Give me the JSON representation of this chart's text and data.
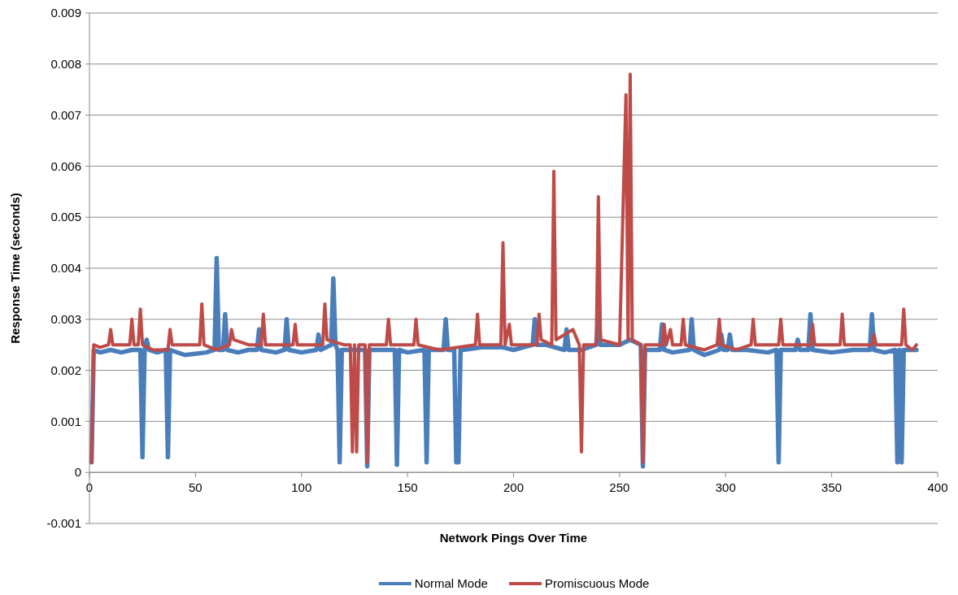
{
  "chart_data": {
    "type": "line",
    "xlabel": "Network Pings Over Time",
    "ylabel": "Response Time (seconds)",
    "xlim": [
      0,
      400
    ],
    "xticks": [
      0,
      50,
      100,
      150,
      200,
      250,
      300,
      350,
      400
    ],
    "ylim": [
      -0.001,
      0.009
    ],
    "yticks": [
      {
        "value": -0.001,
        "label": "-0.001"
      },
      {
        "value": 0,
        "label": "0"
      },
      {
        "value": 0.001,
        "label": "0.001"
      },
      {
        "value": 0.002,
        "label": "0.002"
      },
      {
        "value": 0.003,
        "label": "0.003"
      },
      {
        "value": 0.004,
        "label": "0.004"
      },
      {
        "value": 0.005,
        "label": "0.005"
      },
      {
        "value": 0.006,
        "label": "0.006"
      },
      {
        "value": 0.007,
        "label": "0.007"
      },
      {
        "value": 0.008,
        "label": "0.008"
      },
      {
        "value": 0.009,
        "label": "0.009"
      }
    ],
    "grid": "y",
    "legend": "bottom",
    "marker": "none",
    "line_style": "solid",
    "series": [
      {
        "name": "Normal Mode",
        "color": "#4a7ebb",
        "x": [
          1,
          2,
          5,
          10,
          15,
          20,
          24,
          25,
          26,
          27,
          28,
          32,
          36,
          37,
          38,
          45,
          55,
          59,
          60,
          61,
          63,
          64,
          65,
          70,
          75,
          79,
          80,
          81,
          88,
          92,
          93,
          94,
          100,
          107,
          108,
          109,
          114,
          115,
          116,
          117,
          118,
          119,
          125,
          130,
          131,
          132,
          140,
          144,
          145,
          146,
          150,
          158,
          159,
          160,
          165,
          167,
          168,
          169,
          172,
          173,
          174,
          175,
          176,
          185,
          195,
          200,
          209,
          210,
          211,
          215,
          224,
          225,
          226,
          232,
          239,
          240,
          241,
          250,
          255,
          260,
          261,
          262,
          269,
          270,
          271,
          275,
          283,
          284,
          285,
          290,
          297,
          298,
          299,
          301,
          302,
          303,
          310,
          320,
          324,
          325,
          326,
          333,
          334,
          335,
          339,
          340,
          341,
          350,
          360,
          368,
          369,
          370,
          375,
          380,
          381,
          382,
          383,
          384,
          390
        ],
        "values": [
          0.0002,
          0.0024,
          0.00235,
          0.0024,
          0.00235,
          0.0024,
          0.0024,
          0.0003,
          0.0024,
          0.0026,
          0.0024,
          0.00235,
          0.0024,
          0.0003,
          0.0024,
          0.0023,
          0.00235,
          0.0024,
          0.0042,
          0.0024,
          0.0024,
          0.0031,
          0.0024,
          0.00235,
          0.0024,
          0.0024,
          0.0028,
          0.0024,
          0.00235,
          0.0024,
          0.003,
          0.0024,
          0.00235,
          0.0024,
          0.0027,
          0.0024,
          0.0025,
          0.0038,
          0.0025,
          0.0024,
          0.0002,
          0.0024,
          0.0024,
          0.0024,
          0.00012,
          0.0024,
          0.0024,
          0.0024,
          0.00015,
          0.0024,
          0.00235,
          0.0024,
          0.0002,
          0.0024,
          0.0024,
          0.0024,
          0.003,
          0.0024,
          0.0024,
          0.0002,
          0.0002,
          0.0024,
          0.0024,
          0.00245,
          0.00245,
          0.0024,
          0.0025,
          0.003,
          0.0025,
          0.0025,
          0.0024,
          0.0028,
          0.0024,
          0.0024,
          0.0025,
          0.0031,
          0.0025,
          0.0025,
          0.0026,
          0.0025,
          0.00012,
          0.0024,
          0.0024,
          0.0029,
          0.0024,
          0.00235,
          0.0024,
          0.003,
          0.0024,
          0.0023,
          0.0024,
          0.0027,
          0.0024,
          0.0024,
          0.0027,
          0.0024,
          0.0024,
          0.00235,
          0.0024,
          0.0002,
          0.0024,
          0.0024,
          0.0026,
          0.0024,
          0.0024,
          0.0031,
          0.0024,
          0.00235,
          0.0024,
          0.0024,
          0.0031,
          0.0024,
          0.00235,
          0.0024,
          0.0002,
          0.0024,
          0.0002,
          0.0024,
          0.0024
        ]
      },
      {
        "name": "Promiscuous Mode",
        "color": "#be4b48",
        "x": [
          1,
          2,
          5,
          9,
          10,
          11,
          19,
          20,
          21,
          23,
          24,
          25,
          30,
          37,
          38,
          39,
          45,
          52,
          53,
          54,
          60,
          66,
          67,
          68,
          75,
          81,
          82,
          83,
          90,
          96,
          97,
          98,
          105,
          110,
          111,
          112,
          120,
          123,
          124,
          125,
          126,
          127,
          130,
          131,
          132,
          140,
          141,
          142,
          153,
          154,
          155,
          165,
          182,
          183,
          184,
          194,
          195,
          196,
          198,
          199,
          211,
          212,
          213,
          218,
          219,
          220,
          228,
          231,
          232,
          233,
          239,
          240,
          241,
          250,
          253,
          254,
          255,
          256,
          260,
          261,
          262,
          270,
          271,
          272,
          274,
          275,
          279,
          280,
          281,
          290,
          296,
          297,
          298,
          305,
          312,
          313,
          314,
          325,
          326,
          327,
          340,
          341,
          342,
          354,
          355,
          356,
          369,
          370,
          371,
          383,
          384,
          385,
          388,
          390
        ],
        "values": [
          0.0002,
          0.0025,
          0.00245,
          0.0025,
          0.0028,
          0.0025,
          0.0025,
          0.003,
          0.0025,
          0.0025,
          0.0032,
          0.0025,
          0.0024,
          0.0024,
          0.0028,
          0.0025,
          0.0025,
          0.0025,
          0.0033,
          0.0025,
          0.0024,
          0.0025,
          0.0028,
          0.0026,
          0.0025,
          0.0025,
          0.0031,
          0.0025,
          0.0025,
          0.0025,
          0.0029,
          0.0025,
          0.0025,
          0.0025,
          0.0033,
          0.0026,
          0.0025,
          0.0025,
          0.0004,
          0.0025,
          0.0004,
          0.0025,
          0.0025,
          0.0002,
          0.0025,
          0.0025,
          0.003,
          0.0025,
          0.0025,
          0.003,
          0.0025,
          0.0024,
          0.0025,
          0.0031,
          0.0025,
          0.0025,
          0.0045,
          0.0025,
          0.0029,
          0.0025,
          0.0025,
          0.0031,
          0.0026,
          0.0025,
          0.0059,
          0.0026,
          0.0028,
          0.0025,
          0.0004,
          0.0025,
          0.0025,
          0.0054,
          0.0026,
          0.0025,
          0.0074,
          0.0026,
          0.0078,
          0.0026,
          0.0025,
          0.0002,
          0.0025,
          0.0025,
          0.0029,
          0.0025,
          0.0028,
          0.0025,
          0.0025,
          0.003,
          0.0025,
          0.0024,
          0.0025,
          0.003,
          0.0025,
          0.0024,
          0.0025,
          0.003,
          0.0025,
          0.0025,
          0.003,
          0.0025,
          0.0025,
          0.0029,
          0.0025,
          0.0025,
          0.0031,
          0.0025,
          0.0025,
          0.0027,
          0.0025,
          0.0025,
          0.0032,
          0.0025,
          0.0024,
          0.0025
        ]
      }
    ]
  }
}
